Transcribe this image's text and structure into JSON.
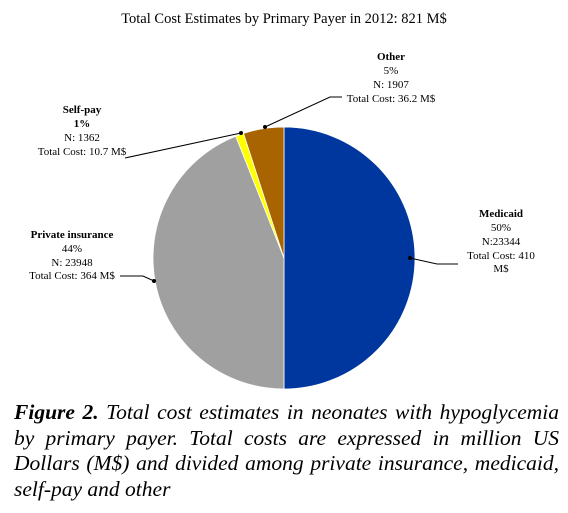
{
  "chart_data": {
    "type": "pie",
    "title": "Total Cost Estimates by Primary Payer in 2012: 821 M$",
    "slices": [
      {
        "name": "Medicaid",
        "percent_label": "50%",
        "percent": 50,
        "n_label": "N:23344",
        "cost_label": "Total Cost: 410 M$",
        "cost": 410,
        "color": "#00379e"
      },
      {
        "name": "Private insurance",
        "percent_label": "44%",
        "percent": 44,
        "n_label": "N: 23948",
        "cost_label": "Total Cost: 364 M$",
        "cost": 364,
        "color": "#a0a0a0"
      },
      {
        "name": "Self-pay",
        "percent_label": "1%",
        "percent": 1,
        "n_label": "N: 1362",
        "cost_label": "Total Cost: 10.7 M$",
        "cost": 10.7,
        "color": "#ffff00"
      },
      {
        "name": "Other",
        "percent_label": "5%",
        "percent": 5,
        "n_label": "N: 1907",
        "cost_label": "Total Cost: 36.2 M$",
        "cost": 36.2,
        "color": "#a86400"
      }
    ]
  },
  "caption": {
    "label": "Figure 2.",
    "text": "Total cost estimates in neonates with hypoglycemia by primary payer. Total costs are expressed in million US Dollars (M$) and divided among private insurance, medicaid, self-pay and other"
  }
}
